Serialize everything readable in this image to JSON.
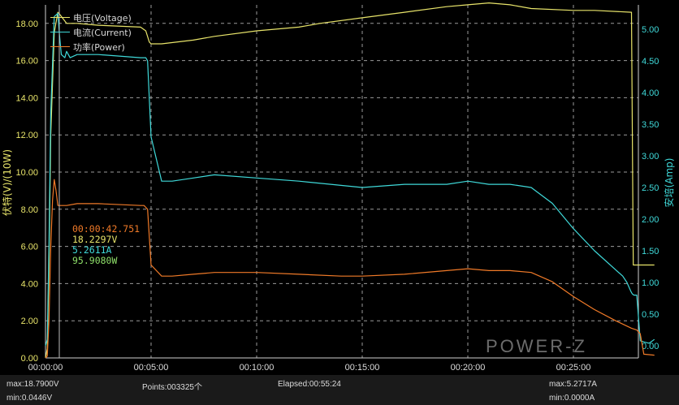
{
  "colors": {
    "voltage": "#e8e46a",
    "current": "#3fd9d9",
    "power": "#f07a28",
    "grid": "#9a9a9a",
    "cursor": "#bdbdbd",
    "readout_time": "#f07a28",
    "readout_voltage": "#e8e46a",
    "readout_current": "#3fd9d9",
    "readout_power": "#8fe06a"
  },
  "legend": {
    "voltage": "电压(Voltage)",
    "current": "电流(Current)",
    "power": "功率(Power)"
  },
  "readout": {
    "time": "00:00:42.751",
    "voltage": "18.2297V",
    "current": "5.2611A",
    "power": "95.9080W"
  },
  "logo": "POWER-Z",
  "footer": {
    "max_voltage": "max:18.7900V",
    "min_voltage": "min:0.0446V",
    "points": "Points:003325个",
    "elapsed": "Elapsed:00:55:24",
    "max_current": "max:5.2717A",
    "min_current": "min:0.0000A"
  },
  "chart_data": {
    "type": "line",
    "xlabel": "",
    "ylabel": "伏特(V)/(10W)",
    "ylabel_right": "安培(Amp)",
    "x_ticks": [
      "00:00:00",
      "00:05:00",
      "00:10:00",
      "00:15:00",
      "00:20:00",
      "00:25:00"
    ],
    "y_ticks_left": [
      "0.00",
      "2.00",
      "4.00",
      "6.00",
      "8.00",
      "10.00",
      "12.00",
      "14.00",
      "16.00",
      "18.00"
    ],
    "y_ticks_right": [
      "0.00",
      "0.50",
      "1.00",
      "1.50",
      "2.00",
      "2.50",
      "3.00",
      "3.50",
      "4.00",
      "4.50",
      "5.00"
    ],
    "xlim_seconds": [
      0,
      1920
    ],
    "ylim_left": [
      0,
      19
    ],
    "ylim_right": [
      0,
      5.6
    ],
    "grid": true,
    "legend_position": "top-left",
    "series": [
      {
        "name": "电压(Voltage)",
        "key": "voltage",
        "axis": "left",
        "x_seconds": [
          0,
          5,
          10,
          15,
          25,
          35,
          40,
          60,
          90,
          150,
          270,
          285,
          295,
          300,
          330,
          420,
          480,
          600,
          720,
          780,
          900,
          1020,
          1140,
          1200,
          1260,
          1320,
          1380,
          1500,
          1560,
          1665,
          1670,
          1675,
          1730
        ],
        "values": [
          0.0,
          0.5,
          5.0,
          12.0,
          17.5,
          18.6,
          18.5,
          18.0,
          18.0,
          17.9,
          17.8,
          17.6,
          17.0,
          16.9,
          16.9,
          17.1,
          17.3,
          17.6,
          17.8,
          18.0,
          18.3,
          18.6,
          18.9,
          19.0,
          19.1,
          19.0,
          18.8,
          18.7,
          18.7,
          18.6,
          5.0,
          5.0,
          5.0
        ]
      },
      {
        "name": "电流(Current)",
        "key": "current",
        "axis": "right",
        "x_seconds": [
          0,
          5,
          10,
          15,
          25,
          35,
          40,
          45,
          55,
          60,
          70,
          90,
          150,
          270,
          278,
          285,
          290,
          300,
          330,
          360,
          420,
          480,
          600,
          720,
          900,
          1020,
          1140,
          1200,
          1260,
          1320,
          1380,
          1440,
          1500,
          1560,
          1620,
          1640,
          1652,
          1660,
          1664,
          1667,
          1672,
          1680,
          1690,
          1700,
          1715,
          1730
        ],
        "values": [
          0.0,
          0.1,
          1.6,
          3.7,
          5.2,
          5.25,
          4.9,
          4.6,
          4.55,
          4.65,
          4.55,
          4.6,
          4.6,
          4.55,
          4.55,
          4.55,
          4.5,
          3.3,
          2.6,
          2.6,
          2.65,
          2.7,
          2.65,
          2.6,
          2.5,
          2.55,
          2.55,
          2.6,
          2.55,
          2.55,
          2.5,
          2.25,
          1.85,
          1.5,
          1.2,
          1.1,
          1.0,
          0.9,
          0.85,
          0.82,
          0.8,
          0.8,
          0.08,
          0.06,
          0.04,
          0.1
        ]
      },
      {
        "name": "功率(Power)",
        "key": "power",
        "axis": "left",
        "x_seconds": [
          0,
          5,
          10,
          15,
          20,
          25,
          30,
          35,
          40,
          60,
          90,
          150,
          270,
          280,
          290,
          300,
          330,
          360,
          420,
          480,
          600,
          720,
          840,
          900,
          1020,
          1140,
          1200,
          1260,
          1320,
          1380,
          1440,
          1500,
          1560,
          1620,
          1665,
          1680,
          1690,
          1700,
          1730
        ],
        "values": [
          0.0,
          0.1,
          2.0,
          6.0,
          8.5,
          9.6,
          9.0,
          8.2,
          8.2,
          8.2,
          8.3,
          8.3,
          8.2,
          8.2,
          8.0,
          5.0,
          4.4,
          4.4,
          4.5,
          4.6,
          4.6,
          4.5,
          4.4,
          4.4,
          4.5,
          4.7,
          4.8,
          4.7,
          4.7,
          4.6,
          4.1,
          3.3,
          2.6,
          2.0,
          1.6,
          1.5,
          1.3,
          0.2,
          0.15
        ]
      }
    ]
  }
}
